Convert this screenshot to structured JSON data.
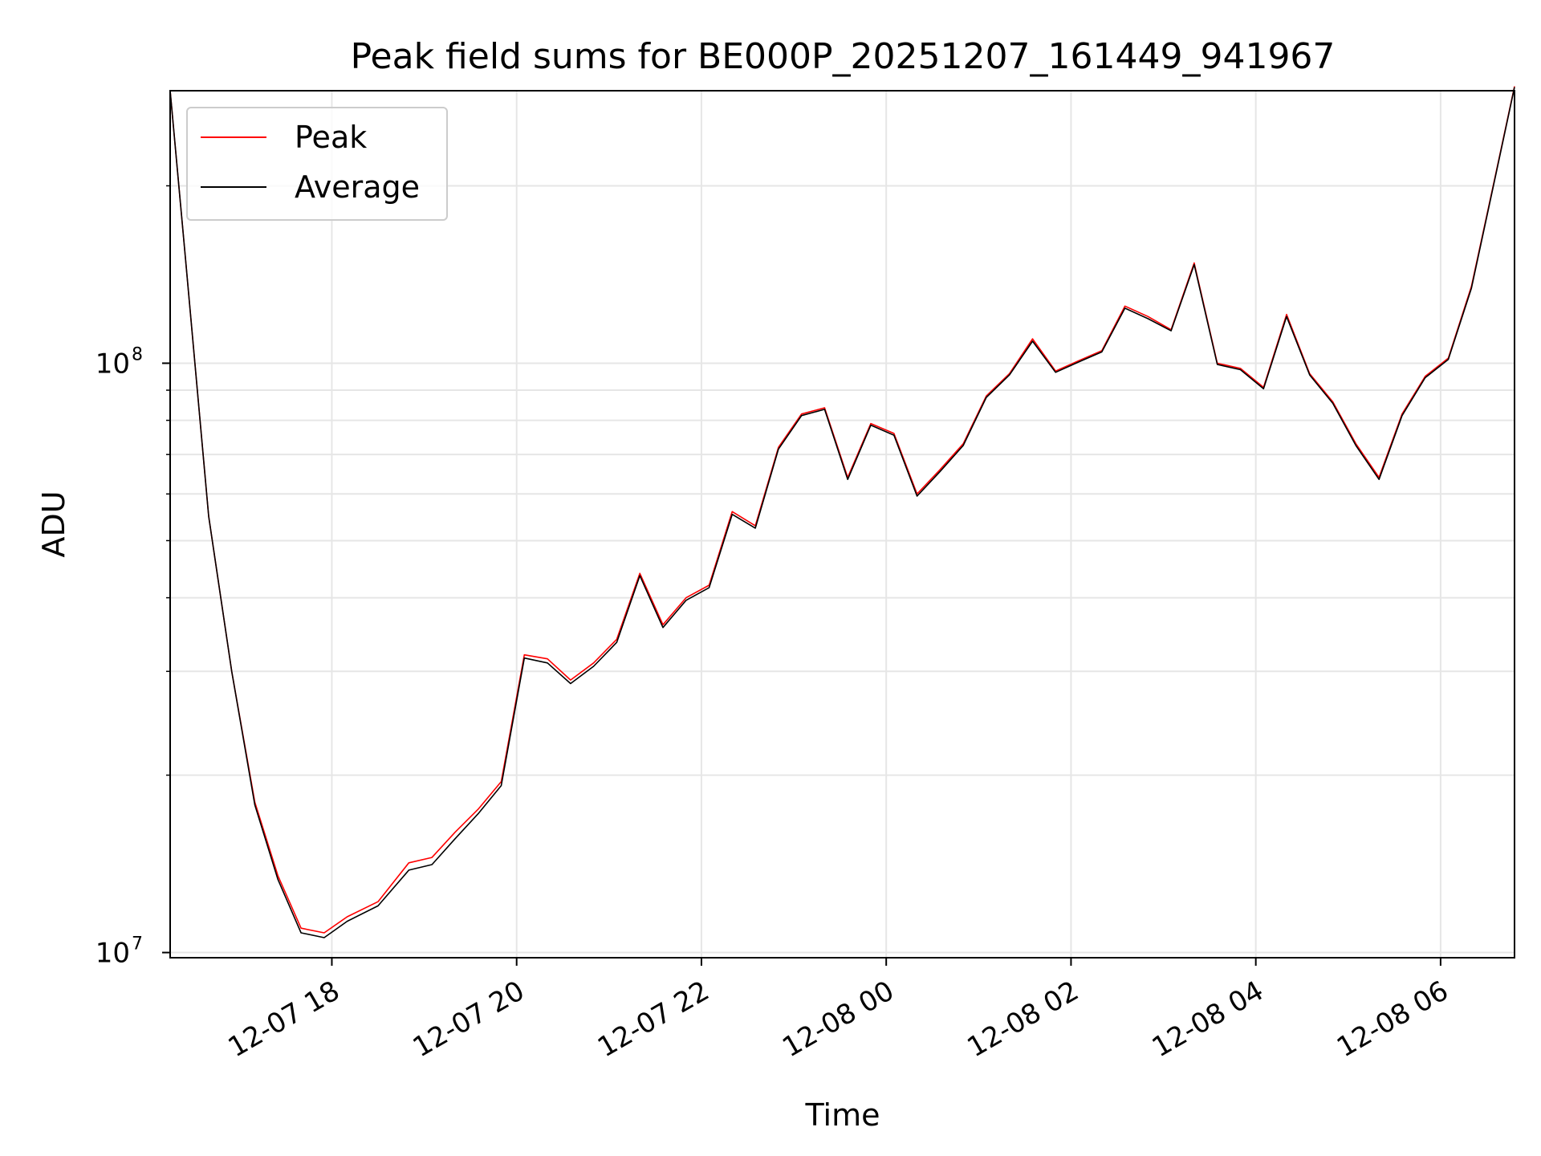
{
  "chart_data": {
    "type": "line",
    "title": "Peak field sums for BE000P_20251207_161449_941967",
    "xlabel": "Time",
    "ylabel": "ADU",
    "yscale": "log",
    "ylim": [
      9800000,
      290000000
    ],
    "xlim": [
      "2025-12-07 16:15",
      "2025-12-08 06:48"
    ],
    "grid": true,
    "legend_position": "top-left",
    "x_ticks": [
      "12-07 18",
      "12-07 20",
      "12-07 22",
      "12-08 00",
      "12-08 02",
      "12-08 04",
      "12-08 06"
    ],
    "x_tick_times": [
      "2025-12-07 18:00",
      "2025-12-07 20:00",
      "2025-12-07 22:00",
      "2025-12-08 00:00",
      "2025-12-08 02:00",
      "2025-12-08 04:00",
      "2025-12-08 06:00"
    ],
    "y_ticks": [
      {
        "base": "10",
        "exp": "7",
        "value": 10000000
      },
      {
        "base": "10",
        "exp": "8",
        "value": 100000000
      }
    ],
    "x": [
      "2025-12-07 16:15",
      "2025-12-07 16:25",
      "2025-12-07 16:40",
      "2025-12-07 16:55",
      "2025-12-07 17:10",
      "2025-12-07 17:25",
      "2025-12-07 17:40",
      "2025-12-07 17:55",
      "2025-12-07 18:10",
      "2025-12-07 18:30",
      "2025-12-07 18:50",
      "2025-12-07 19:05",
      "2025-12-07 19:20",
      "2025-12-07 19:35",
      "2025-12-07 19:50",
      "2025-12-07 20:05",
      "2025-12-07 20:20",
      "2025-12-07 20:35",
      "2025-12-07 20:50",
      "2025-12-07 21:05",
      "2025-12-07 21:20",
      "2025-12-07 21:35",
      "2025-12-07 21:50",
      "2025-12-07 22:05",
      "2025-12-07 22:20",
      "2025-12-07 22:35",
      "2025-12-07 22:50",
      "2025-12-07 23:05",
      "2025-12-07 23:20",
      "2025-12-07 23:35",
      "2025-12-07 23:50",
      "2025-12-08 00:05",
      "2025-12-08 00:20",
      "2025-12-08 00:35",
      "2025-12-08 00:50",
      "2025-12-08 01:05",
      "2025-12-08 01:20",
      "2025-12-08 01:35",
      "2025-12-08 01:50",
      "2025-12-08 02:05",
      "2025-12-08 02:20",
      "2025-12-08 02:35",
      "2025-12-08 02:50",
      "2025-12-08 03:05",
      "2025-12-08 03:20",
      "2025-12-08 03:35",
      "2025-12-08 03:50",
      "2025-12-08 04:05",
      "2025-12-08 04:20",
      "2025-12-08 04:35",
      "2025-12-08 04:50",
      "2025-12-08 05:05",
      "2025-12-08 05:20",
      "2025-12-08 05:35",
      "2025-12-08 05:50",
      "2025-12-08 06:05",
      "2025-12-08 06:20",
      "2025-12-08 06:35",
      "2025-12-08 06:48"
    ],
    "series": [
      {
        "name": "Peak",
        "color": "#ff0000",
        "values": [
          290000000,
          150000000,
          55000000,
          30000000,
          18000000,
          13500000,
          11000000,
          10800000,
          11500000,
          12200000,
          14200000,
          14500000,
          16000000,
          17500000,
          19500000,
          32000000,
          31500000,
          29000000,
          31000000,
          34000000,
          44000000,
          36000000,
          40000000,
          42000000,
          56000000,
          53000000,
          72000000,
          82000000,
          84000000,
          64000000,
          79000000,
          76000000,
          60000000,
          66000000,
          73000000,
          88000000,
          96000000,
          110000000,
          97000000,
          101000000,
          105000000,
          125000000,
          120000000,
          114000000,
          148000000,
          100000000,
          98000000,
          91000000,
          121000000,
          96000000,
          86000000,
          73000000,
          64000000,
          82000000,
          95000000,
          102000000,
          135000000,
          205000000,
          295000000
        ]
      },
      {
        "name": "Average",
        "color": "#000000",
        "values": [
          290000000,
          150000000,
          55000000,
          30000000,
          17800000,
          13300000,
          10800000,
          10600000,
          11300000,
          12000000,
          13800000,
          14100000,
          15600000,
          17200000,
          19200000,
          31600000,
          31000000,
          28600000,
          30600000,
          33600000,
          43600000,
          35600000,
          39600000,
          41600000,
          55400000,
          52500000,
          71500000,
          81500000,
          83500000,
          63500000,
          78500000,
          75500000,
          59500000,
          65500000,
          72500000,
          87500000,
          95500000,
          109000000,
          96500000,
          100500000,
          104500000,
          124000000,
          119000000,
          113500000,
          147000000,
          99500000,
          97500000,
          90500000,
          120000000,
          95500000,
          85500000,
          72500000,
          63500000,
          81500000,
          94500000,
          101500000,
          134000000,
          204000000,
          294000000
        ]
      }
    ]
  }
}
